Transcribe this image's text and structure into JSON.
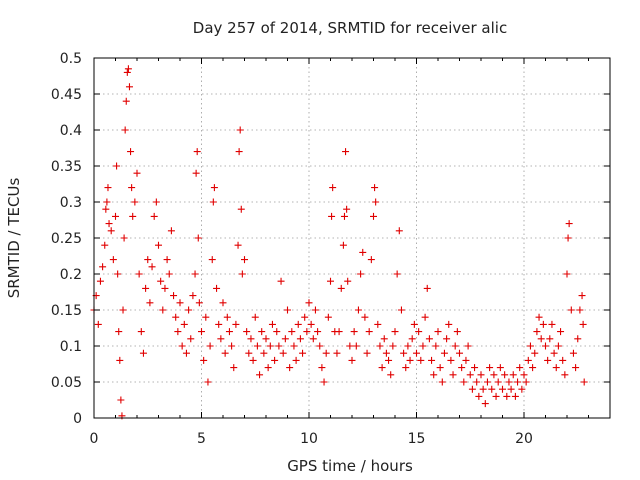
{
  "chart_data": {
    "type": "scatter",
    "title": "Day 257 of 2014, SRMTID for receiver alic",
    "xlabel": "GPS time / hours",
    "ylabel": "SRMTID / TECUs",
    "xlim": [
      0,
      24
    ],
    "ylim": [
      0,
      0.5
    ],
    "xticks": [
      0,
      5,
      10,
      15,
      20
    ],
    "xtick_labels": [
      "0",
      "5",
      "10",
      "15",
      "20"
    ],
    "yticks": [
      0,
      0.05,
      0.1,
      0.15,
      0.2,
      0.25,
      0.3,
      0.35,
      0.4,
      0.45,
      0.5
    ],
    "ytick_labels": [
      "0",
      "0.05",
      "0.1",
      "0.15",
      "0.2",
      "0.25",
      "0.3",
      "0.35",
      "0.4",
      "0.45",
      "0.5"
    ],
    "grid": true,
    "marker": "+",
    "color": "#e00000",
    "series": [
      {
        "name": "SRMTID",
        "points": [
          [
            0.0,
            0.15
          ],
          [
            0.1,
            0.17
          ],
          [
            0.2,
            0.13
          ],
          [
            0.3,
            0.19
          ],
          [
            0.4,
            0.21
          ],
          [
            0.5,
            0.24
          ],
          [
            0.55,
            0.29
          ],
          [
            0.6,
            0.3
          ],
          [
            0.65,
            0.32
          ],
          [
            0.7,
            0.27
          ],
          [
            0.8,
            0.26
          ],
          [
            0.9,
            0.22
          ],
          [
            1.0,
            0.28
          ],
          [
            1.05,
            0.35
          ],
          [
            1.1,
            0.2
          ],
          [
            1.15,
            0.12
          ],
          [
            1.2,
            0.08
          ],
          [
            1.25,
            0.025
          ],
          [
            1.3,
            0.003
          ],
          [
            1.35,
            0.15
          ],
          [
            1.4,
            0.25
          ],
          [
            1.45,
            0.4
          ],
          [
            1.5,
            0.44
          ],
          [
            1.55,
            0.48
          ],
          [
            1.6,
            0.485
          ],
          [
            1.65,
            0.46
          ],
          [
            1.7,
            0.37
          ],
          [
            1.75,
            0.32
          ],
          [
            1.8,
            0.28
          ],
          [
            1.9,
            0.3
          ],
          [
            2.0,
            0.34
          ],
          [
            2.1,
            0.2
          ],
          [
            2.2,
            0.12
          ],
          [
            2.3,
            0.09
          ],
          [
            2.4,
            0.18
          ],
          [
            2.5,
            0.22
          ],
          [
            2.6,
            0.16
          ],
          [
            2.7,
            0.21
          ],
          [
            2.8,
            0.28
          ],
          [
            2.9,
            0.3
          ],
          [
            3.0,
            0.24
          ],
          [
            3.1,
            0.19
          ],
          [
            3.2,
            0.15
          ],
          [
            3.3,
            0.18
          ],
          [
            3.4,
            0.22
          ],
          [
            3.5,
            0.2
          ],
          [
            3.6,
            0.26
          ],
          [
            3.7,
            0.17
          ],
          [
            3.8,
            0.14
          ],
          [
            3.9,
            0.12
          ],
          [
            4.0,
            0.16
          ],
          [
            4.1,
            0.1
          ],
          [
            4.2,
            0.13
          ],
          [
            4.3,
            0.09
          ],
          [
            4.4,
            0.15
          ],
          [
            4.5,
            0.11
          ],
          [
            4.6,
            0.17
          ],
          [
            4.7,
            0.2
          ],
          [
            4.75,
            0.34
          ],
          [
            4.8,
            0.37
          ],
          [
            4.85,
            0.25
          ],
          [
            4.9,
            0.16
          ],
          [
            5.0,
            0.12
          ],
          [
            5.1,
            0.08
          ],
          [
            5.2,
            0.14
          ],
          [
            5.3,
            0.05
          ],
          [
            5.4,
            0.1
          ],
          [
            5.5,
            0.22
          ],
          [
            5.55,
            0.3
          ],
          [
            5.6,
            0.32
          ],
          [
            5.7,
            0.18
          ],
          [
            5.8,
            0.13
          ],
          [
            5.9,
            0.11
          ],
          [
            6.0,
            0.16
          ],
          [
            6.1,
            0.09
          ],
          [
            6.2,
            0.14
          ],
          [
            6.3,
            0.12
          ],
          [
            6.4,
            0.1
          ],
          [
            6.5,
            0.07
          ],
          [
            6.6,
            0.13
          ],
          [
            6.7,
            0.24
          ],
          [
            6.75,
            0.37
          ],
          [
            6.8,
            0.4
          ],
          [
            6.85,
            0.29
          ],
          [
            6.9,
            0.2
          ],
          [
            7.0,
            0.22
          ],
          [
            7.1,
            0.12
          ],
          [
            7.2,
            0.09
          ],
          [
            7.3,
            0.11
          ],
          [
            7.4,
            0.08
          ],
          [
            7.5,
            0.14
          ],
          [
            7.6,
            0.1
          ],
          [
            7.7,
            0.06
          ],
          [
            7.8,
            0.12
          ],
          [
            7.9,
            0.09
          ],
          [
            8.0,
            0.11
          ],
          [
            8.1,
            0.07
          ],
          [
            8.2,
            0.1
          ],
          [
            8.3,
            0.13
          ],
          [
            8.4,
            0.08
          ],
          [
            8.5,
            0.12
          ],
          [
            8.6,
            0.1
          ],
          [
            8.7,
            0.19
          ],
          [
            8.8,
            0.09
          ],
          [
            8.9,
            0.11
          ],
          [
            9.0,
            0.15
          ],
          [
            9.1,
            0.07
          ],
          [
            9.2,
            0.12
          ],
          [
            9.3,
            0.1
          ],
          [
            9.4,
            0.08
          ],
          [
            9.5,
            0.13
          ],
          [
            9.6,
            0.11
          ],
          [
            9.7,
            0.09
          ],
          [
            9.8,
            0.14
          ],
          [
            9.9,
            0.12
          ],
          [
            10.0,
            0.16
          ],
          [
            10.1,
            0.13
          ],
          [
            10.2,
            0.11
          ],
          [
            10.3,
            0.15
          ],
          [
            10.4,
            0.12
          ],
          [
            10.5,
            0.1
          ],
          [
            10.6,
            0.07
          ],
          [
            10.7,
            0.05
          ],
          [
            10.8,
            0.09
          ],
          [
            10.9,
            0.14
          ],
          [
            11.0,
            0.19
          ],
          [
            11.05,
            0.28
          ],
          [
            11.1,
            0.32
          ],
          [
            11.2,
            0.12
          ],
          [
            11.3,
            0.09
          ],
          [
            11.4,
            0.12
          ],
          [
            11.5,
            0.18
          ],
          [
            11.6,
            0.24
          ],
          [
            11.65,
            0.28
          ],
          [
            11.7,
            0.37
          ],
          [
            11.75,
            0.29
          ],
          [
            11.8,
            0.19
          ],
          [
            11.9,
            0.1
          ],
          [
            12.0,
            0.08
          ],
          [
            12.1,
            0.12
          ],
          [
            12.2,
            0.1
          ],
          [
            12.3,
            0.15
          ],
          [
            12.4,
            0.2
          ],
          [
            12.5,
            0.23
          ],
          [
            12.6,
            0.14
          ],
          [
            12.7,
            0.09
          ],
          [
            12.8,
            0.12
          ],
          [
            12.9,
            0.22
          ],
          [
            13.0,
            0.28
          ],
          [
            13.05,
            0.32
          ],
          [
            13.1,
            0.3
          ],
          [
            13.2,
            0.13
          ],
          [
            13.3,
            0.1
          ],
          [
            13.4,
            0.07
          ],
          [
            13.5,
            0.11
          ],
          [
            13.6,
            0.09
          ],
          [
            13.7,
            0.08
          ],
          [
            13.8,
            0.06
          ],
          [
            13.9,
            0.1
          ],
          [
            14.0,
            0.12
          ],
          [
            14.1,
            0.2
          ],
          [
            14.2,
            0.26
          ],
          [
            14.3,
            0.15
          ],
          [
            14.4,
            0.09
          ],
          [
            14.5,
            0.07
          ],
          [
            14.6,
            0.1
          ],
          [
            14.7,
            0.08
          ],
          [
            14.8,
            0.11
          ],
          [
            14.9,
            0.13
          ],
          [
            15.0,
            0.09
          ],
          [
            15.1,
            0.12
          ],
          [
            15.2,
            0.08
          ],
          [
            15.3,
            0.1
          ],
          [
            15.4,
            0.14
          ],
          [
            15.5,
            0.18
          ],
          [
            15.6,
            0.11
          ],
          [
            15.7,
            0.08
          ],
          [
            15.8,
            0.06
          ],
          [
            15.9,
            0.1
          ],
          [
            16.0,
            0.12
          ],
          [
            16.1,
            0.07
          ],
          [
            16.2,
            0.05
          ],
          [
            16.3,
            0.09
          ],
          [
            16.4,
            0.11
          ],
          [
            16.5,
            0.13
          ],
          [
            16.6,
            0.08
          ],
          [
            16.7,
            0.06
          ],
          [
            16.8,
            0.1
          ],
          [
            16.9,
            0.12
          ],
          [
            17.0,
            0.09
          ],
          [
            17.1,
            0.07
          ],
          [
            17.2,
            0.05
          ],
          [
            17.3,
            0.08
          ],
          [
            17.4,
            0.1
          ],
          [
            17.5,
            0.06
          ],
          [
            17.6,
            0.04
          ],
          [
            17.7,
            0.07
          ],
          [
            17.8,
            0.05
          ],
          [
            17.9,
            0.03
          ],
          [
            18.0,
            0.06
          ],
          [
            18.1,
            0.04
          ],
          [
            18.2,
            0.02
          ],
          [
            18.3,
            0.05
          ],
          [
            18.4,
            0.07
          ],
          [
            18.5,
            0.04
          ],
          [
            18.6,
            0.06
          ],
          [
            18.7,
            0.03
          ],
          [
            18.8,
            0.05
          ],
          [
            18.9,
            0.07
          ],
          [
            19.0,
            0.04
          ],
          [
            19.1,
            0.06
          ],
          [
            19.2,
            0.03
          ],
          [
            19.3,
            0.05
          ],
          [
            19.4,
            0.04
          ],
          [
            19.5,
            0.06
          ],
          [
            19.6,
            0.03
          ],
          [
            19.7,
            0.05
          ],
          [
            19.8,
            0.07
          ],
          [
            19.9,
            0.04
          ],
          [
            20.0,
            0.06
          ],
          [
            20.1,
            0.05
          ],
          [
            20.2,
            0.08
          ],
          [
            20.3,
            0.1
          ],
          [
            20.4,
            0.07
          ],
          [
            20.5,
            0.09
          ],
          [
            20.6,
            0.12
          ],
          [
            20.7,
            0.14
          ],
          [
            20.8,
            0.11
          ],
          [
            20.9,
            0.13
          ],
          [
            21.0,
            0.1
          ],
          [
            21.1,
            0.08
          ],
          [
            21.2,
            0.11
          ],
          [
            21.3,
            0.13
          ],
          [
            21.4,
            0.09
          ],
          [
            21.5,
            0.07
          ],
          [
            21.6,
            0.1
          ],
          [
            21.7,
            0.12
          ],
          [
            21.8,
            0.08
          ],
          [
            21.9,
            0.06
          ],
          [
            22.0,
            0.2
          ],
          [
            22.05,
            0.25
          ],
          [
            22.1,
            0.27
          ],
          [
            22.2,
            0.15
          ],
          [
            22.3,
            0.09
          ],
          [
            22.4,
            0.07
          ],
          [
            22.5,
            0.11
          ],
          [
            22.6,
            0.15
          ],
          [
            22.7,
            0.17
          ],
          [
            22.75,
            0.13
          ],
          [
            22.8,
            0.05
          ]
        ]
      }
    ]
  }
}
